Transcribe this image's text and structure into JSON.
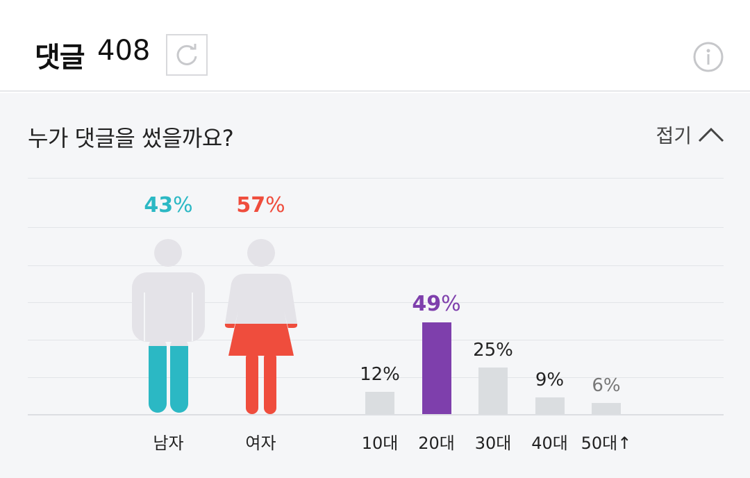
{
  "header": {
    "title": "댓글",
    "count": "408",
    "refresh_icon": "refresh-icon",
    "info_icon": "info-icon"
  },
  "panel": {
    "question": "누가 댓글을 썼을까요?",
    "collapse_label": "접기",
    "collapse_icon": "chevron-up-icon"
  },
  "gender": {
    "male": {
      "label": "남자",
      "percent": 43,
      "percent_text": "43",
      "unit": "%",
      "color": "#2bb8c4"
    },
    "female": {
      "label": "여자",
      "percent": 57,
      "percent_text": "57",
      "unit": "%",
      "color": "#ef4d3d"
    },
    "empty_color": "#e4e3e8"
  },
  "chart_data": {
    "type": "bar",
    "categories": [
      "10대",
      "20대",
      "30대",
      "40대",
      "50대↑"
    ],
    "values": [
      12,
      49,
      25,
      9,
      6
    ],
    "labels": [
      "12%",
      "49%",
      "25%",
      "9%",
      "6%"
    ],
    "highlight_index": 1,
    "colors": {
      "default": "#dadde0",
      "highlight": "#7e3fac"
    }
  }
}
